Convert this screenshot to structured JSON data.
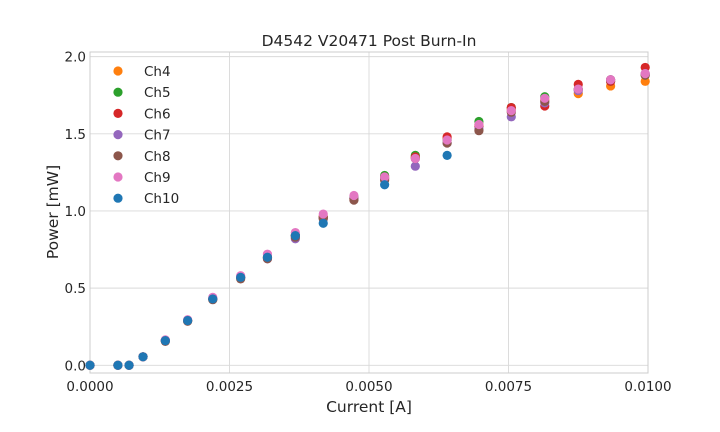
{
  "chart_data": {
    "type": "scatter",
    "title": "D4542 V20471 Post Burn-In",
    "xlabel": "Current [A]",
    "ylabel": "Power [mW]",
    "xlim": [
      0,
      0.01
    ],
    "ylim": [
      -0.05,
      2.03
    ],
    "xticks": [
      "0.0000",
      "0.0025",
      "0.0050",
      "0.0075",
      "0.0100"
    ],
    "yticks": [
      "0.0",
      "0.5",
      "1.0",
      "1.5",
      "2.0"
    ],
    "grid": true,
    "legend_position": "upper-left",
    "x": [
      0,
      0.0005,
      0.0007,
      0.00095,
      0.00135,
      0.00175,
      0.0022,
      0.0027,
      0.00318,
      0.00368,
      0.00418,
      0.00473,
      0.00528,
      0.00583,
      0.0064,
      0.00697,
      0.00755,
      0.00815,
      0.00875,
      0.00933,
      0.00995
    ],
    "series": [
      {
        "name": "Ch4",
        "color": "#ff7f0e",
        "values": [
          0,
          0,
          0,
          0.055,
          0.16,
          0.29,
          0.43,
          0.57,
          0.7,
          0.84,
          0.96,
          1.08,
          1.21,
          1.35,
          1.47,
          1.56,
          1.66,
          1.72,
          1.76,
          1.81,
          1.84
        ]
      },
      {
        "name": "Ch5",
        "color": "#2ca02c",
        "values": [
          0,
          0,
          0,
          0.055,
          0.16,
          0.29,
          0.43,
          0.57,
          0.7,
          0.84,
          0.96,
          1.09,
          1.23,
          1.36,
          1.46,
          1.58,
          1.67,
          1.74,
          1.79,
          1.84,
          1.88
        ]
      },
      {
        "name": "Ch6",
        "color": "#d62728",
        "values": [
          0,
          0,
          0,
          0.055,
          0.16,
          0.29,
          0.43,
          0.57,
          0.7,
          0.84,
          0.96,
          1.08,
          1.22,
          1.35,
          1.48,
          1.55,
          1.67,
          1.68,
          1.82,
          1.84,
          1.93
        ]
      },
      {
        "name": "Ch7",
        "color": "#9467bd",
        "values": [
          0,
          0,
          0,
          0.055,
          0.16,
          0.29,
          0.43,
          0.57,
          0.69,
          0.82,
          0.95,
          1.08,
          1.21,
          1.29,
          1.44,
          1.53,
          1.61,
          1.7,
          1.78,
          1.85,
          1.89
        ]
      },
      {
        "name": "Ch8",
        "color": "#8c564b",
        "values": [
          0,
          0,
          0,
          0.055,
          0.155,
          0.285,
          0.425,
          0.56,
          0.69,
          0.83,
          0.95,
          1.07,
          1.2,
          1.34,
          1.44,
          1.52,
          1.64,
          1.71,
          1.79,
          1.85,
          1.88
        ]
      },
      {
        "name": "Ch9",
        "color": "#e377c2",
        "values": [
          0,
          0,
          0,
          0.055,
          0.165,
          0.295,
          0.44,
          0.58,
          0.72,
          0.86,
          0.98,
          1.1,
          1.22,
          1.34,
          1.46,
          1.56,
          1.65,
          1.73,
          1.79,
          1.85,
          1.89
        ]
      },
      {
        "name": "Ch10",
        "color": "#1f77b4",
        "values": [
          0,
          0,
          0,
          0.055,
          0.16,
          0.29,
          0.43,
          0.57,
          0.7,
          0.84,
          0.92,
          null,
          1.17,
          null,
          1.36,
          null,
          null,
          null,
          null,
          null,
          null
        ]
      }
    ]
  }
}
